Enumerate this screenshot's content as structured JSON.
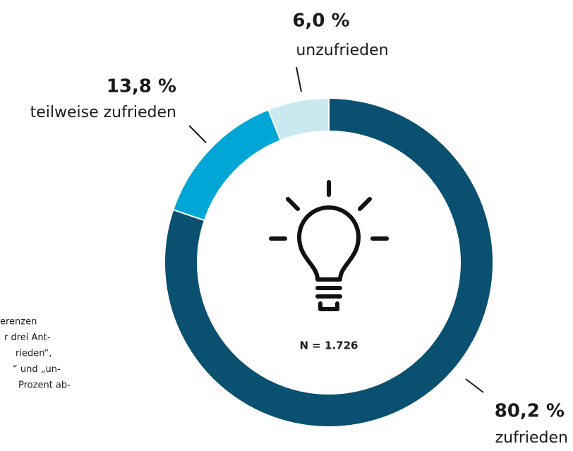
{
  "chart_data": {
    "type": "pie",
    "donut": true,
    "categories": [
      "zufrieden",
      "teilweise zufrieden",
      "unzufrieden"
    ],
    "values": [
      80.2,
      13.8,
      6.0
    ],
    "value_labels": [
      "80,2 %",
      "13,8 %",
      "6,0 %"
    ],
    "colors": [
      "#0a5070",
      "#00a6d6",
      "#c9e8f0"
    ],
    "center_label": "N = 1.726",
    "note_lines": [
      "erenzen",
      "r drei Ant-",
      "rieden“,",
      "“ und „un-",
      "Prozent ab-"
    ]
  }
}
